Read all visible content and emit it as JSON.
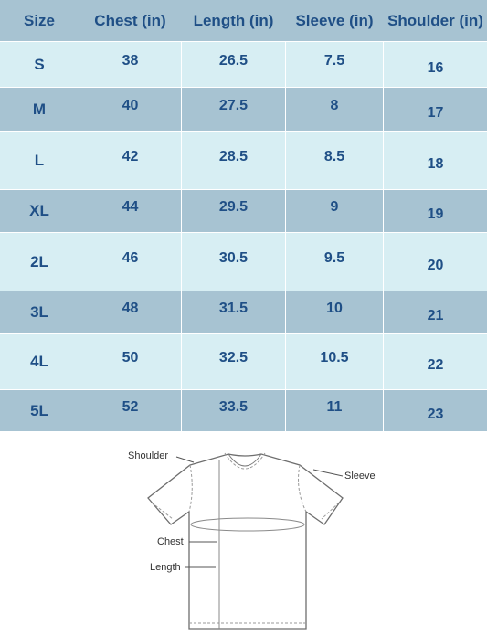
{
  "table": {
    "headers": [
      "Size",
      "Chest (in)",
      "Length (in)",
      "Sleeve (in)",
      "Shoulder (in)"
    ],
    "rows": [
      [
        "S",
        "38",
        "26.5",
        "7.5",
        "16"
      ],
      [
        "M",
        "40",
        "27.5",
        "8",
        "17"
      ],
      [
        "L",
        "42",
        "28.5",
        "8.5",
        "18"
      ],
      [
        "XL",
        "44",
        "29.5",
        "9",
        "19"
      ],
      [
        "2L",
        "46",
        "30.5",
        "9.5",
        "20"
      ],
      [
        "3L",
        "48",
        "31.5",
        "10",
        "21"
      ],
      [
        "4L",
        "50",
        "32.5",
        "10.5",
        "22"
      ],
      [
        "5L",
        "52",
        "33.5",
        "11",
        "23"
      ]
    ]
  },
  "diagram": {
    "shoulder_label": "Shoulder",
    "sleeve_label": "Sleeve",
    "chest_label": "Chest",
    "length_label": "Length"
  },
  "colors": {
    "header_bg": "#a7c3d2",
    "light_row": "#d7eef3",
    "dark_row": "#a7c3d2",
    "text": "#1f4f86"
  }
}
